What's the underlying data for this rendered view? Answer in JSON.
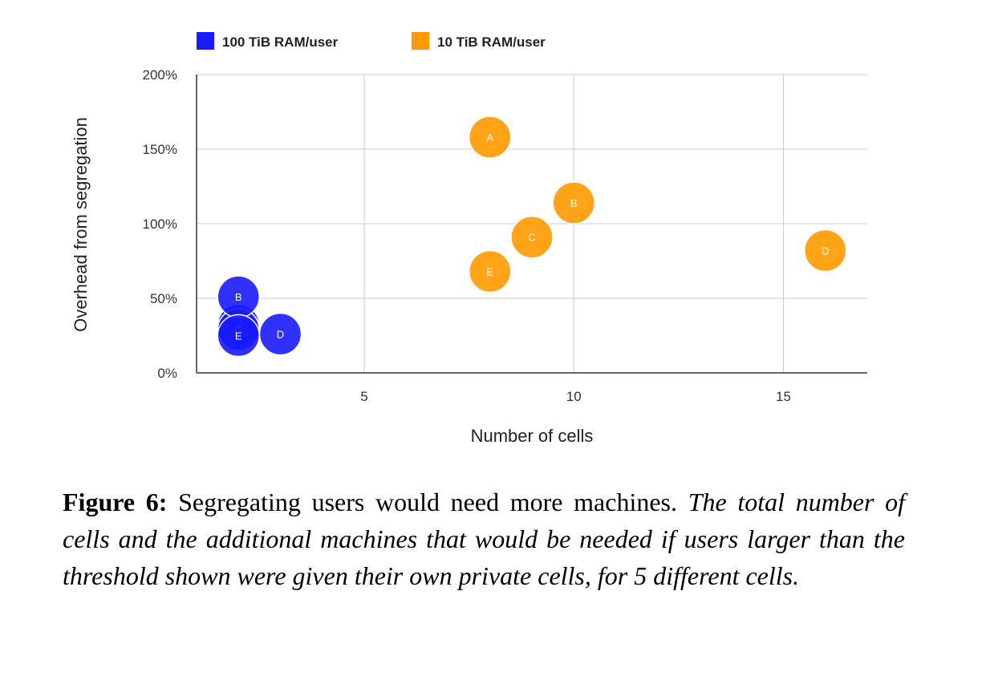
{
  "chart_data": {
    "type": "scatter",
    "xlabel": "Number of cells",
    "ylabel": "Overhead from segregation",
    "xlim": [
      1,
      17
    ],
    "ylim": [
      0,
      2
    ],
    "x_ticks": [
      5,
      10,
      15
    ],
    "x_tick_labels": [
      "5",
      "10",
      "15"
    ],
    "y_ticks": [
      0,
      0.5,
      1,
      1.5,
      2
    ],
    "y_tick_labels": [
      "0%",
      "50%",
      "100%",
      "150%",
      "200%"
    ],
    "grid": true,
    "legend_position": "top-left",
    "series": [
      {
        "name": "100 TiB RAM/user",
        "color": "#1a1aff",
        "points": [
          {
            "label": "A",
            "x": 2,
            "y": 0.32
          },
          {
            "label": "C",
            "x": 2,
            "y": 0.29
          },
          {
            "label": "B",
            "x": 2,
            "y": 0.51
          },
          {
            "label": "E",
            "x": 2,
            "y": 0.25
          },
          {
            "label": "D",
            "x": 3,
            "y": 0.26
          }
        ]
      },
      {
        "name": "10 TiB RAM/user",
        "color": "#ff9900",
        "points": [
          {
            "label": "A",
            "x": 8,
            "y": 1.58
          },
          {
            "label": "B",
            "x": 10,
            "y": 1.14
          },
          {
            "label": "C",
            "x": 9,
            "y": 0.91
          },
          {
            "label": "E",
            "x": 8,
            "y": 0.68
          },
          {
            "label": "D",
            "x": 16,
            "y": 0.82
          }
        ]
      }
    ]
  },
  "caption": {
    "label": "Figure 6:",
    "lead": "Segregating users would need more machines.",
    "body": "The total number of cells and the additional machines that would be needed if users larger than the threshold shown were given their own private cells, for 5 different cells."
  }
}
